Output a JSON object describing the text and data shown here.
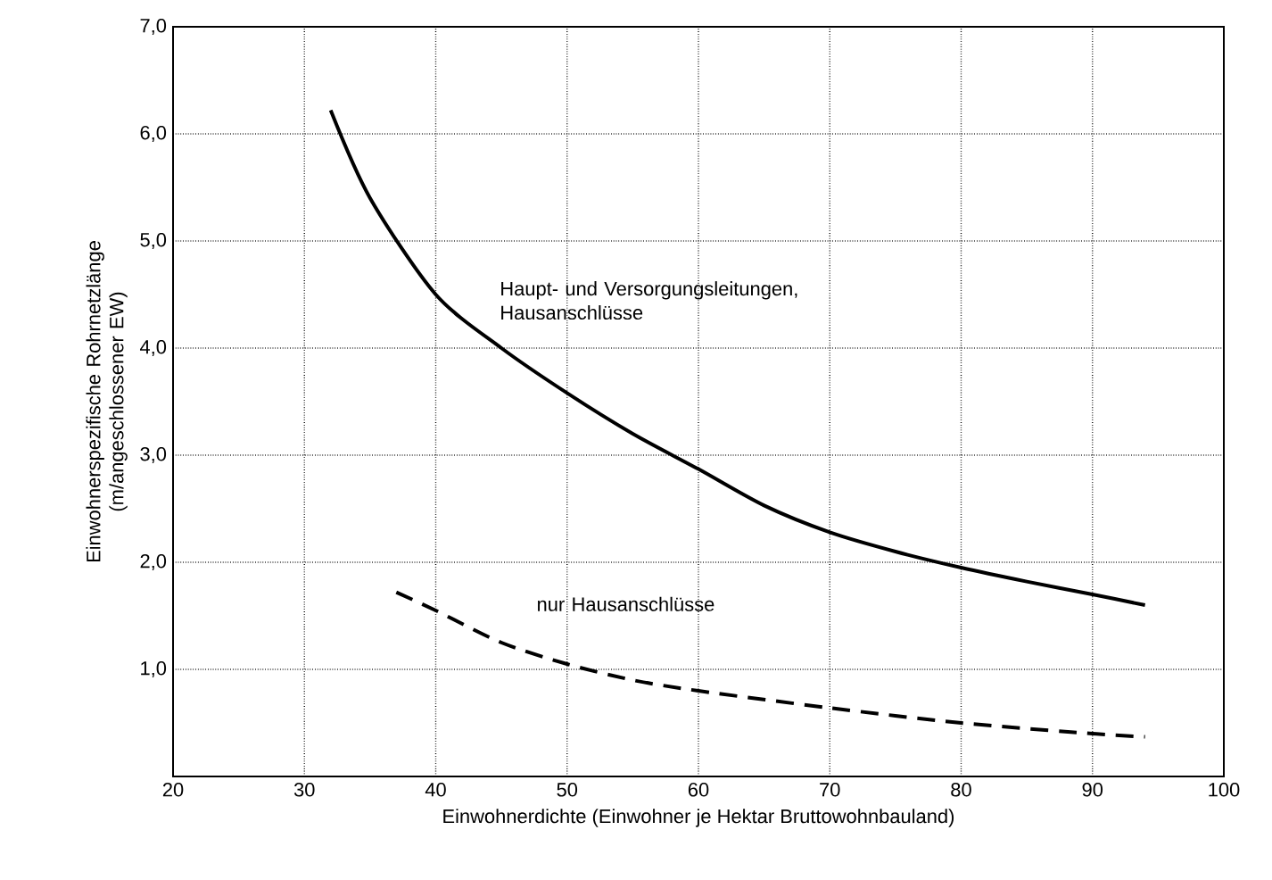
{
  "chart_data": {
    "type": "line",
    "xlabel": "Einwohnerdichte (Einwohner je Hektar Bruttowohnbauland)",
    "ylabel": "Einwohnerspezifische Rohrnetzlänge (m/angeschlossener EW)",
    "xlim": [
      20,
      100
    ],
    "xticks": [
      20,
      30,
      40,
      50,
      60,
      70,
      80,
      90,
      100
    ],
    "ylim": [
      0,
      7
    ],
    "yticks": [
      {
        "value": 0,
        "label": null
      },
      {
        "value": 1,
        "label": "1,0"
      },
      {
        "value": 2,
        "label": "2,0"
      },
      {
        "value": 3,
        "label": "3,0"
      },
      {
        "value": 4,
        "label": "4,0"
      },
      {
        "value": 5,
        "label": "5,0"
      },
      {
        "value": 6,
        "label": "6,0"
      },
      {
        "value": 7,
        "label": "7,0"
      }
    ],
    "grid": true,
    "legend": false,
    "marker": "none",
    "series": [
      {
        "name": "Haupt- und Versorgungsleitungen, Hausanschlüsse",
        "color": "#000000",
        "line_style": "solid",
        "x": [
          32,
          35,
          40,
          45,
          50,
          55,
          60,
          65,
          70,
          75,
          80,
          85,
          90,
          94
        ],
        "values": [
          6.22,
          5.4,
          4.5,
          4.0,
          3.58,
          3.2,
          2.87,
          2.53,
          2.28,
          2.1,
          1.95,
          1.82,
          1.7,
          1.6
        ]
      },
      {
        "name": "nur Hausanschlüsse",
        "color": "#000000",
        "line_style": "dashed",
        "x": [
          37,
          40,
          45,
          50,
          55,
          60,
          70,
          80,
          90,
          94
        ],
        "values": [
          1.72,
          1.55,
          1.25,
          1.05,
          0.9,
          0.8,
          0.64,
          0.5,
          0.4,
          0.37
        ]
      }
    ]
  }
}
